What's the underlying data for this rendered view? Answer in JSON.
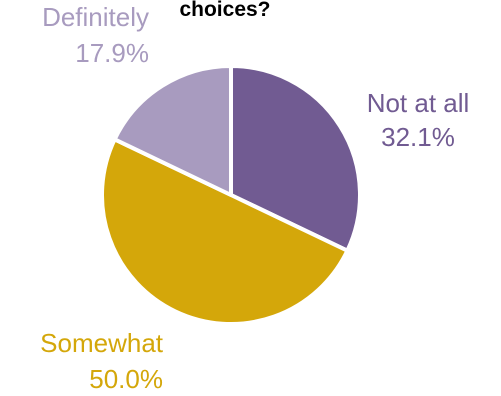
{
  "chart_data": {
    "type": "pie",
    "title": "choices?",
    "start_angle_deg": 0,
    "direction": "clockwise",
    "slices": [
      {
        "label": "Not at all",
        "value_label": "32.1%",
        "value": 32.1,
        "color": "#715b92"
      },
      {
        "label": "Somewhat",
        "value_label": "50.0%",
        "value": 50.0,
        "color": "#d4a70a"
      },
      {
        "label": "Definitely",
        "value_label": "17.9%",
        "value": 17.9,
        "color": "#a89bbf"
      }
    ],
    "legend": "none",
    "separator_color": "#ffffff"
  }
}
